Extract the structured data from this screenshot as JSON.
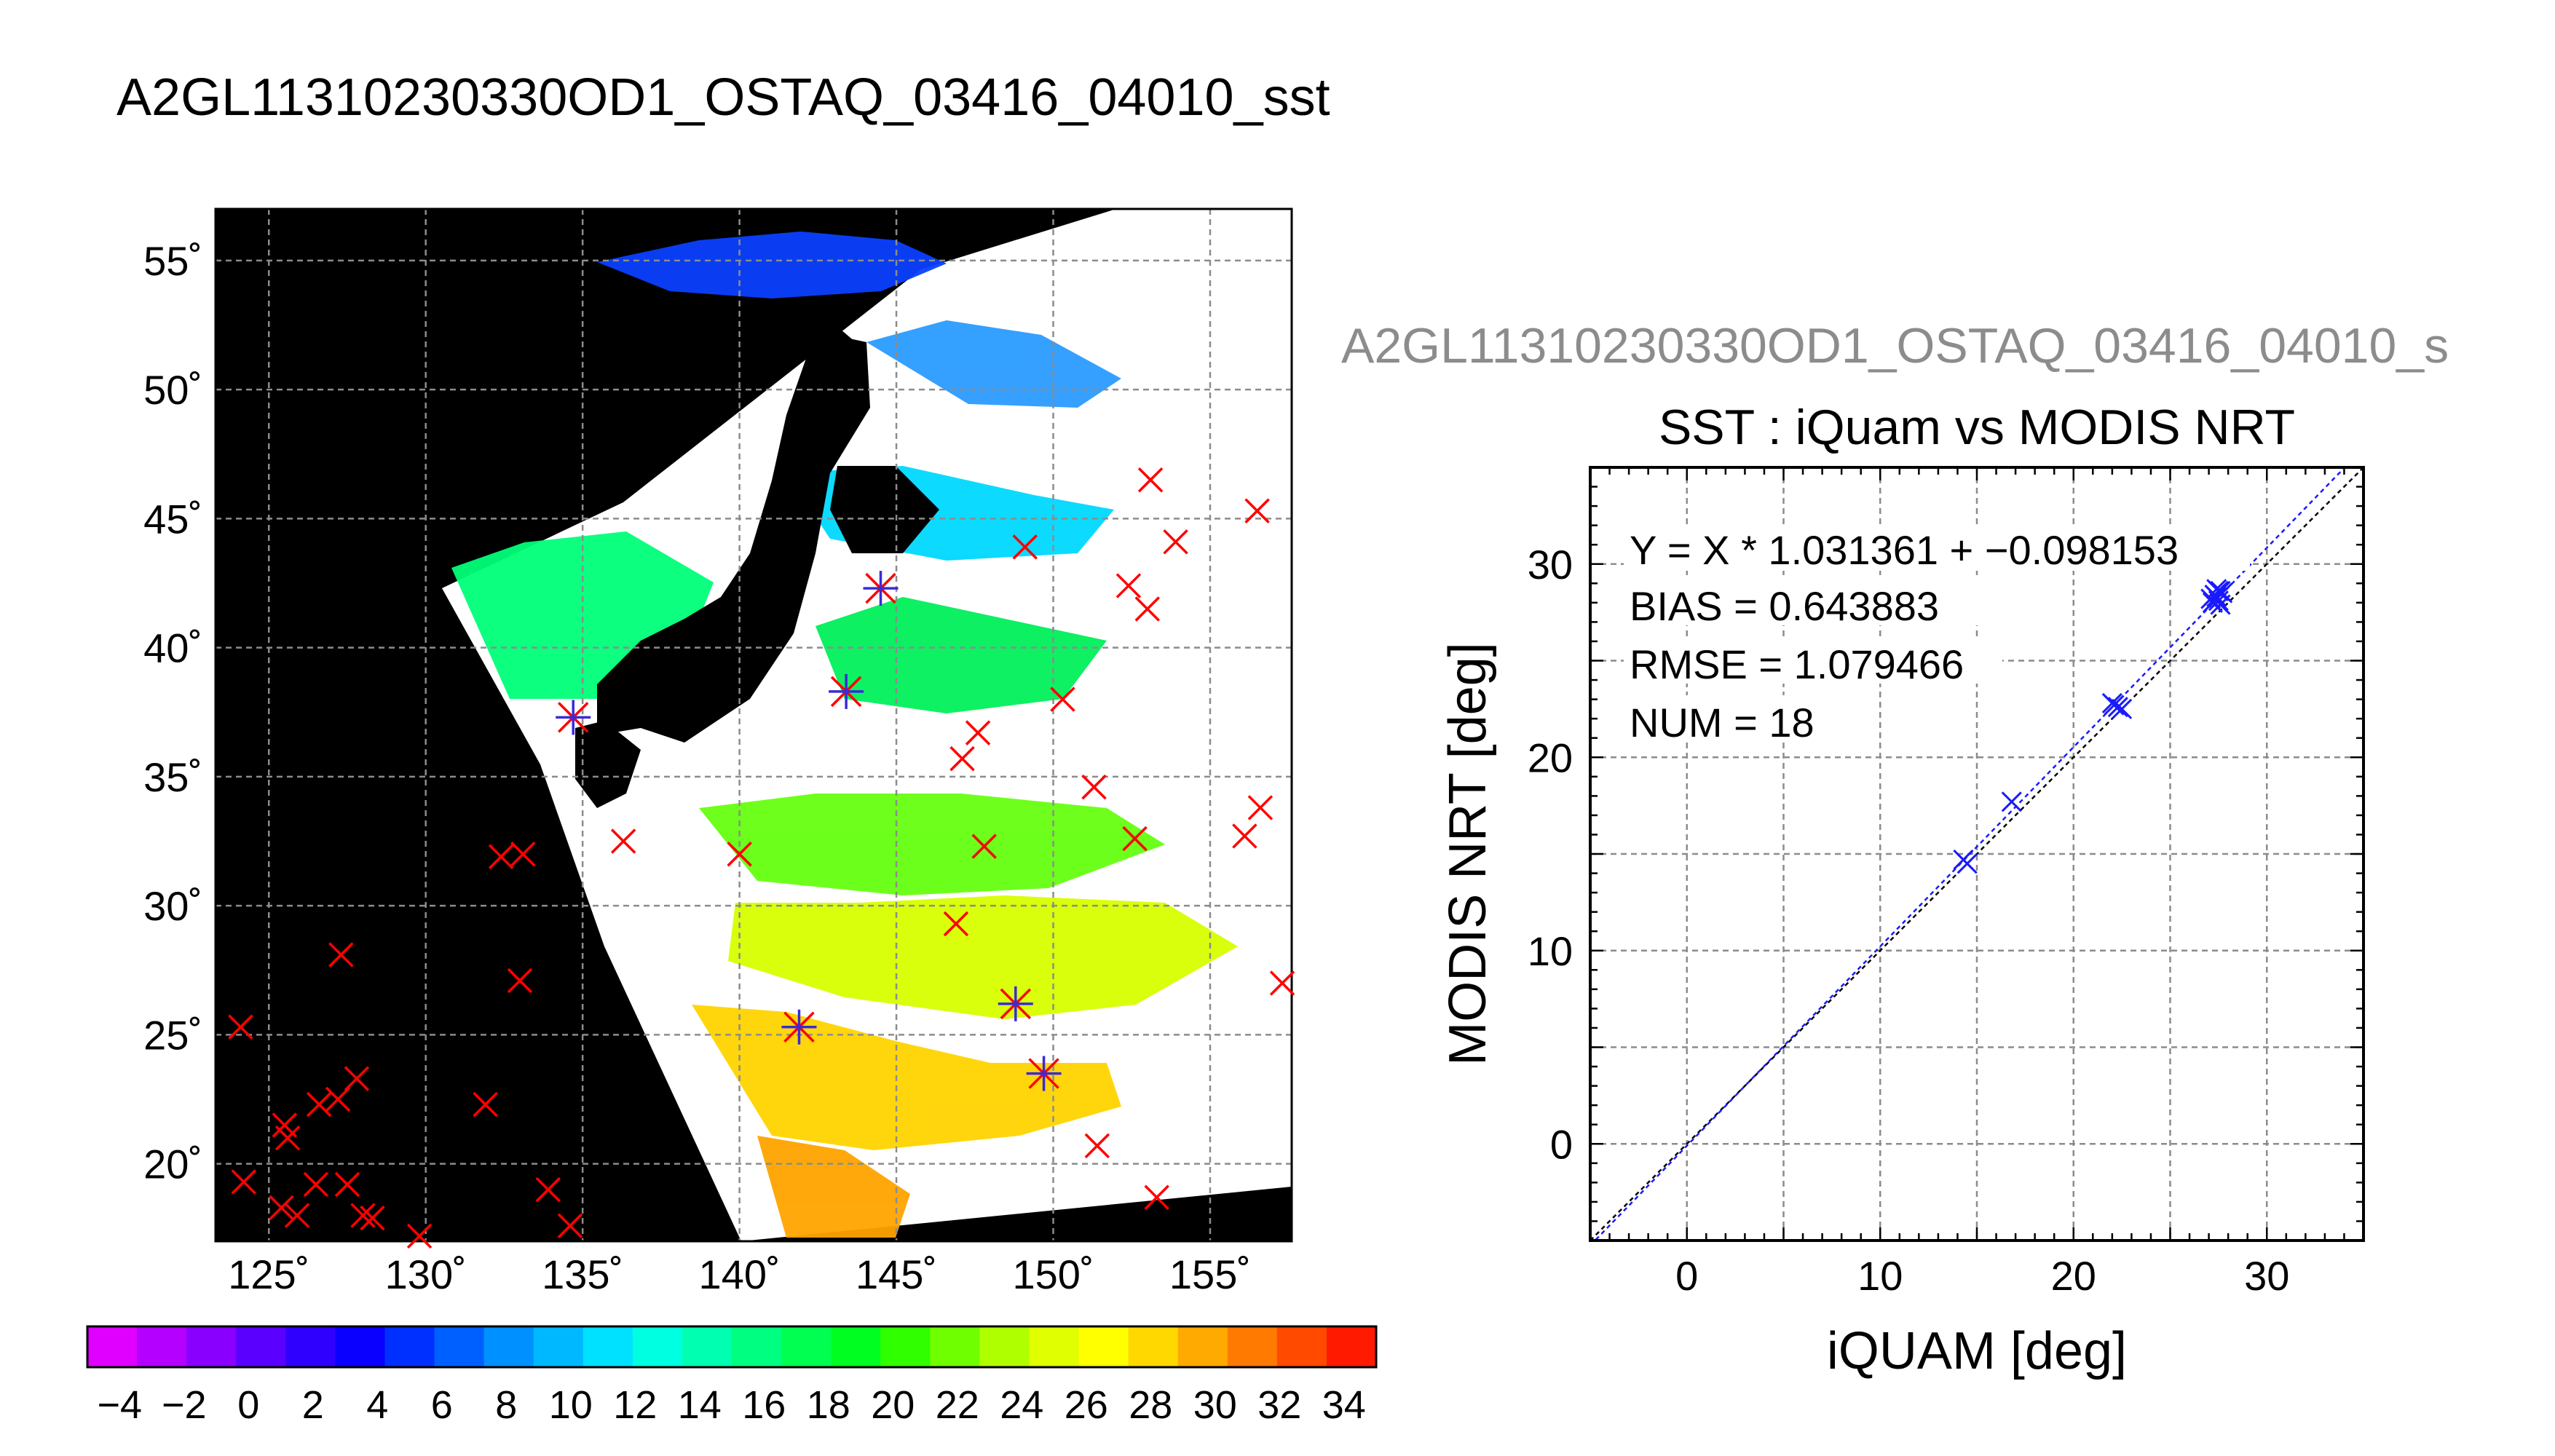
{
  "figure_title": "A2GL11310230330OD1_OSTAQ_03416_04010_sst",
  "scatter_header": "A2GL11310230330OD1_OSTAQ_03416_04010_s",
  "colors": {
    "matchup_red": "#ff0000",
    "matchup_blue": "#3a2ad8",
    "scatter_blue": "#1a1aff",
    "land_black": "#000000",
    "grid": "#8c8c8c"
  },
  "map": {
    "lon_ticks": [
      "125˚",
      "130˚",
      "135˚",
      "140˚",
      "145˚",
      "150˚",
      "155˚"
    ],
    "lat_ticks": [
      "55˚",
      "50˚",
      "45˚",
      "40˚",
      "35˚",
      "30˚",
      "25˚",
      "20˚"
    ],
    "lon_values": [
      125,
      130,
      135,
      140,
      145,
      150,
      155
    ],
    "lat_values": [
      55,
      50,
      45,
      40,
      35,
      30,
      25,
      20
    ],
    "lon_range": [
      123.3,
      157.6
    ],
    "lat_range": [
      17.0,
      57.0
    ],
    "colorbar_labels": [
      "−4",
      "−2",
      "0",
      "2",
      "4",
      "6",
      "8",
      "10",
      "12",
      "14",
      "16",
      "18",
      "20",
      "22",
      "24",
      "26",
      "28",
      "30",
      "32",
      "34"
    ],
    "colorbar_values": [
      -4,
      -2,
      0,
      2,
      4,
      6,
      8,
      10,
      12,
      14,
      16,
      18,
      20,
      22,
      24,
      26,
      28,
      30,
      32,
      34
    ],
    "colorbar_range": [
      -5,
      35
    ],
    "colorbar_colors": [
      "#e000ff",
      "#b400ff",
      "#8a00ff",
      "#5a00ff",
      "#3000ff",
      "#0a00ff",
      "#0030ff",
      "#0060ff",
      "#0090ff",
      "#00b8ff",
      "#00e0ff",
      "#00ffe0",
      "#00ffb0",
      "#00ff80",
      "#00ff50",
      "#00ff20",
      "#30ff00",
      "#70ff00",
      "#b0ff00",
      "#e0ff00",
      "#ffff00",
      "#ffd800",
      "#ffaa00",
      "#ff7a00",
      "#ff4a00",
      "#ff1a00"
    ],
    "matchups_red": [
      [
        124.1,
        25.3
      ],
      [
        124.2,
        19.3
      ],
      [
        125.5,
        21.5
      ],
      [
        125.6,
        21.0
      ],
      [
        125.4,
        18.3
      ],
      [
        125.9,
        18.0
      ],
      [
        126.6,
        22.3
      ],
      [
        126.5,
        19.2
      ],
      [
        127.3,
        28.1
      ],
      [
        127.2,
        22.5
      ],
      [
        127.5,
        19.2
      ],
      [
        127.8,
        23.3
      ],
      [
        128.0,
        18.0
      ],
      [
        128.3,
        17.9
      ],
      [
        129.8,
        17.2
      ],
      [
        131.9,
        22.3
      ],
      [
        132.4,
        31.9
      ],
      [
        133.0,
        27.1
      ],
      [
        133.1,
        32.0
      ],
      [
        133.9,
        19.0
      ],
      [
        134.6,
        17.6
      ],
      [
        136.3,
        32.5
      ],
      [
        140.0,
        32.0
      ],
      [
        146.9,
        29.3
      ],
      [
        147.1,
        35.7
      ],
      [
        147.6,
        36.7
      ],
      [
        147.8,
        32.3
      ],
      [
        149.1,
        43.9
      ],
      [
        150.3,
        38.0
      ],
      [
        151.3,
        34.6
      ],
      [
        151.4,
        20.7
      ],
      [
        152.4,
        42.4
      ],
      [
        152.6,
        32.6
      ],
      [
        153.0,
        41.5
      ],
      [
        153.1,
        46.5
      ],
      [
        153.3,
        18.7
      ],
      [
        153.9,
        44.1
      ],
      [
        156.1,
        32.7
      ],
      [
        156.5,
        45.3
      ],
      [
        156.6,
        33.8
      ],
      [
        157.3,
        27.0
      ]
    ],
    "matchups_blue": [
      [
        134.7,
        37.3
      ],
      [
        141.9,
        25.3
      ],
      [
        143.4,
        38.3
      ],
      [
        144.5,
        42.3
      ],
      [
        148.8,
        26.2
      ],
      [
        149.7,
        23.5
      ]
    ]
  },
  "chart_data": {
    "type": "scatter",
    "title": "SST : iQuam vs MODIS NRT",
    "xlabel": "iQUAM [deg]",
    "ylabel": "MODIS NRT [deg]",
    "xlim": [
      -5,
      35
    ],
    "ylim": [
      -5,
      35
    ],
    "xticks": [
      "0",
      "10",
      "20",
      "30"
    ],
    "yticks": [
      "0",
      "10",
      "20",
      "30"
    ],
    "tick_values": [
      0,
      10,
      20,
      30
    ],
    "grid": true,
    "stats": [
      "Y = X * 1.031361 + −0.098153",
      "BIAS = 0.643883",
      "RMSE = 1.079466",
      "NUM = 18"
    ],
    "fit": {
      "slope": 1.031361,
      "intercept": -0.098153
    },
    "series": [
      {
        "x": [
          14.3,
          14.5,
          16.8,
          22.1,
          22.3,
          22.5,
          22.0,
          27.2,
          27.4,
          27.6,
          27.3,
          27.5,
          27.1,
          27.7,
          27.4,
          27.6,
          27.3,
          27.5
        ],
        "y": [
          14.7,
          14.5,
          17.7,
          22.7,
          22.6,
          22.5,
          22.8,
          28.0,
          28.3,
          28.6,
          28.4,
          28.1,
          28.2,
          28.5,
          28.7,
          27.9,
          28.4,
          28.6
        ]
      }
    ]
  }
}
